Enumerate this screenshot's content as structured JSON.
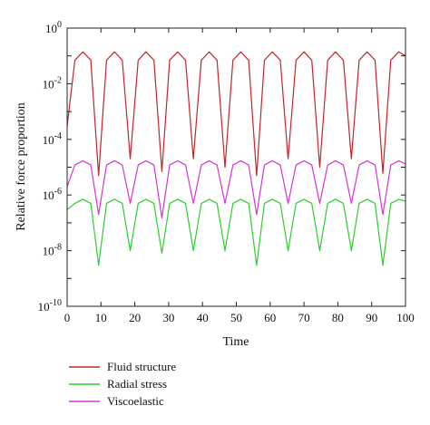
{
  "chart_data": {
    "type": "line",
    "title": "",
    "xlabel": "Time",
    "ylabel": "Relative force proportion",
    "xlim": [
      0,
      100
    ],
    "ylim_log10": [
      -10,
      0
    ],
    "yscale": "log",
    "grid": false,
    "legend_position": "bottom-left, below plot",
    "x_ticks": [
      "0",
      "10",
      "20",
      "30",
      "40",
      "50",
      "60",
      "70",
      "80",
      "90",
      "100"
    ],
    "y_ticks": [
      {
        "base": "10",
        "exp": "0"
      },
      {
        "base": "10",
        "exp": "-2"
      },
      {
        "base": "10",
        "exp": "-4"
      },
      {
        "base": "10",
        "exp": "-6"
      },
      {
        "base": "10",
        "exp": "-8"
      },
      {
        "base": "10",
        "exp": "-10"
      }
    ],
    "x": [
      0,
      2.3,
      4.65,
      7,
      9.3,
      11.65,
      14,
      16.3,
      18.65,
      21,
      23.3,
      25.65,
      28,
      30.3,
      32.65,
      35,
      37.3,
      39.65,
      42,
      44.3,
      46.65,
      49,
      51.3,
      53.65,
      56,
      58.3,
      60.65,
      63,
      65.3,
      67.65,
      70,
      72.3,
      74.65,
      77,
      79.3,
      81.65,
      84,
      86.3,
      88.65,
      91,
      93.3,
      95.65,
      98,
      100
    ],
    "series": [
      {
        "name": "Fluid structure",
        "color": "#c0262b",
        "values": [
          0.0003,
          0.07,
          0.14,
          0.07,
          5e-06,
          0.07,
          0.14,
          0.07,
          2e-05,
          0.07,
          0.14,
          0.07,
          7e-06,
          0.07,
          0.14,
          0.07,
          2e-05,
          0.07,
          0.14,
          0.07,
          1e-05,
          0.07,
          0.14,
          0.07,
          5e-06,
          0.07,
          0.14,
          0.07,
          2e-05,
          0.07,
          0.14,
          0.07,
          1e-05,
          0.07,
          0.14,
          0.07,
          2e-05,
          0.07,
          0.14,
          0.07,
          6e-06,
          0.07,
          0.14,
          0.1
        ]
      },
      {
        "name": "Radial stress",
        "color": "#2ecc2e",
        "values": [
          3e-07,
          5e-07,
          7e-07,
          5e-07,
          3e-09,
          5e-07,
          7e-07,
          5e-07,
          1e-08,
          5e-07,
          7e-07,
          5e-07,
          8e-09,
          5e-07,
          7e-07,
          5e-07,
          1e-08,
          5e-07,
          7e-07,
          5e-07,
          1e-08,
          5e-07,
          7e-07,
          5e-07,
          3e-09,
          5e-07,
          7e-07,
          5e-07,
          1e-08,
          5e-07,
          7e-07,
          5e-07,
          1e-08,
          5e-07,
          7e-07,
          5e-07,
          1e-08,
          5e-07,
          7e-07,
          5e-07,
          3e-09,
          5e-07,
          7e-07,
          6e-07
        ]
      },
      {
        "name": "Viscoelastic",
        "color": "#d433d4",
        "values": [
          2e-06,
          1.2e-05,
          1.7e-05,
          1.2e-05,
          2e-07,
          1.2e-05,
          1.7e-05,
          1.2e-05,
          5e-07,
          1.2e-05,
          1.7e-05,
          1.2e-05,
          1.5e-07,
          1.2e-05,
          1.7e-05,
          1.2e-05,
          5e-07,
          1.2e-05,
          1.7e-05,
          1.2e-05,
          5e-07,
          1.2e-05,
          1.7e-05,
          1.2e-05,
          2e-07,
          1.2e-05,
          1.7e-05,
          1.2e-05,
          5e-07,
          1.2e-05,
          1.7e-05,
          1.2e-05,
          5e-07,
          1.2e-05,
          1.7e-05,
          1.2e-05,
          5e-07,
          1.2e-05,
          1.7e-05,
          1.2e-05,
          2e-07,
          1.2e-05,
          1.7e-05,
          1.3e-05
        ]
      }
    ]
  }
}
